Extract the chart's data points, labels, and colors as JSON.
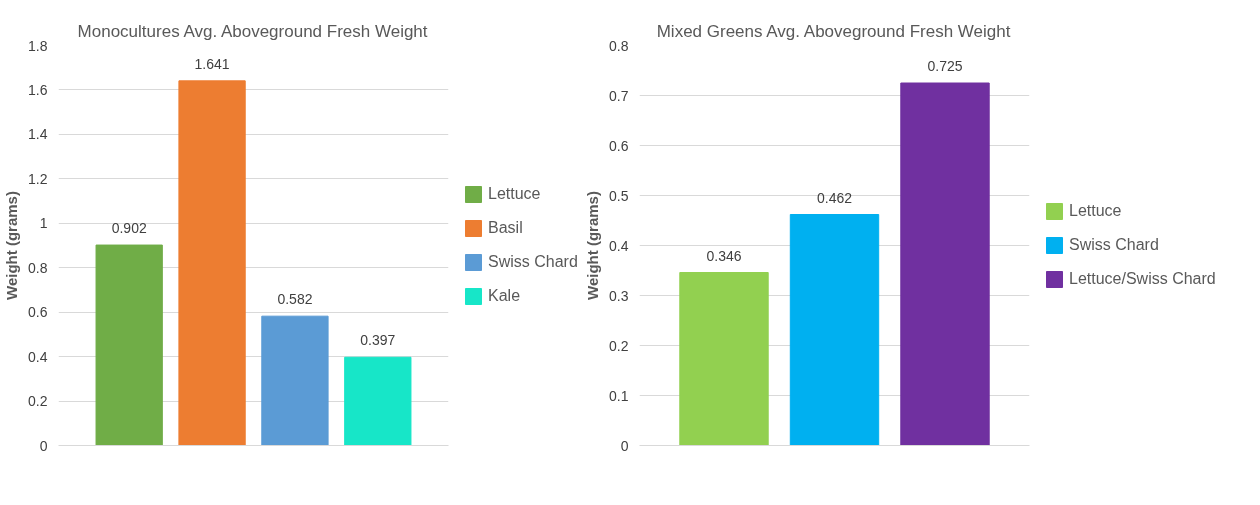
{
  "chart_data": [
    {
      "type": "bar",
      "title": "Monocultures Avg. Aboveground Fresh Weight",
      "ylabel": "Weight (grams)",
      "categories": [
        null
      ],
      "series": [
        {
          "name": "Lettuce",
          "color": "#70ad47",
          "values": [
            0.902
          ]
        },
        {
          "name": "Basil",
          "color": "#ed7d31",
          "values": [
            1.641
          ]
        },
        {
          "name": "Swiss Chard",
          "color": "#5b9bd5",
          "values": [
            0.582
          ]
        },
        {
          "name": "Kale",
          "color": "#17e6c8",
          "values": [
            0.397
          ]
        }
      ],
      "ylim": [
        0,
        1.8
      ],
      "yticks": [
        0,
        0.2,
        0.4,
        0.6,
        0.8,
        1,
        1.2,
        1.4,
        1.6,
        1.8
      ],
      "grid": "y",
      "legend": "right",
      "data_labels": true,
      "tick_labels": "y"
    },
    {
      "type": "bar",
      "title": "Mixed Greens Avg. Aboveground Fresh Weight",
      "ylabel": "Weight (grams)",
      "categories": [
        null
      ],
      "series": [
        {
          "name": "Lettuce",
          "color": "#92d050",
          "values": [
            0.346
          ]
        },
        {
          "name": "Swiss Chard",
          "color": "#00b0f0",
          "values": [
            0.462
          ]
        },
        {
          "name": "Lettuce/Swiss Chard",
          "color": "#7030a0",
          "values": [
            0.725
          ]
        }
      ],
      "ylim": [
        0,
        0.8
      ],
      "yticks": [
        0,
        0.1,
        0.2,
        0.3,
        0.4,
        0.5,
        0.6,
        0.7,
        0.8
      ],
      "grid": "y",
      "legend": "right",
      "data_labels": true,
      "tick_labels": "y"
    }
  ]
}
